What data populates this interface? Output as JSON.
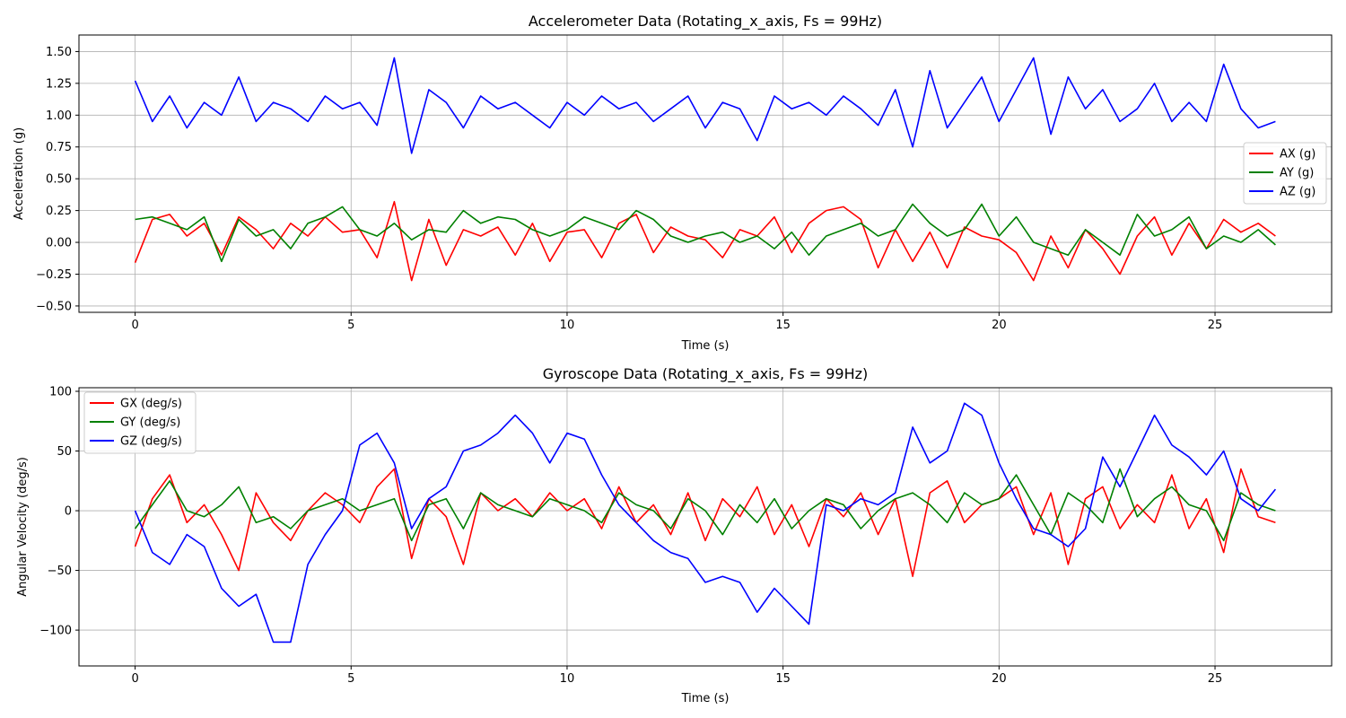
{
  "chart_data": [
    {
      "type": "line",
      "title": "Accelerometer Data (Rotating_x_axis, Fs = 99Hz)",
      "xlabel": "Time (s)",
      "ylabel": "Acceleration (g)",
      "xlim": [
        -1.3,
        27.7
      ],
      "ylim": [
        -0.55,
        1.63
      ],
      "xticks": [
        0,
        5,
        10,
        15,
        20,
        25
      ],
      "xtick_labels": [
        "0",
        "5",
        "10",
        "15",
        "20",
        "25"
      ],
      "yticks": [
        -0.5,
        -0.25,
        0,
        0.25,
        0.5,
        0.75,
        1,
        1.25,
        1.5
      ],
      "ytick_labels": [
        "−0.50",
        "−0.25",
        "0.00",
        "0.25",
        "0.50",
        "0.75",
        "1.00",
        "1.25",
        "1.50"
      ],
      "grid": true,
      "legend_position": "center-right",
      "x": [
        0,
        0.4,
        0.8,
        1.2,
        1.6,
        2,
        2.4,
        2.8,
        3.2,
        3.6,
        4,
        4.4,
        4.8,
        5.2,
        5.6,
        6,
        6.4,
        6.8,
        7.2,
        7.6,
        8,
        8.4,
        8.8,
        9.2,
        9.6,
        10,
        10.4,
        10.8,
        11.2,
        11.6,
        12,
        12.4,
        12.8,
        13.2,
        13.6,
        14,
        14.4,
        14.8,
        15.2,
        15.6,
        16,
        16.4,
        16.8,
        17.2,
        17.6,
        18,
        18.4,
        18.8,
        19.2,
        19.6,
        20,
        20.4,
        20.8,
        21.2,
        21.6,
        22,
        22.4,
        22.8,
        23.2,
        23.6,
        24,
        24.4,
        24.8,
        25.2,
        25.6,
        26,
        26.4
      ],
      "series": [
        {
          "name": "AX (g)",
          "color": "#ff0000",
          "values": [
            -0.16,
            0.18,
            0.22,
            0.05,
            0.15,
            -0.1,
            0.2,
            0.1,
            -0.05,
            0.15,
            0.05,
            0.2,
            0.08,
            0.1,
            -0.12,
            0.32,
            -0.3,
            0.18,
            -0.18,
            0.1,
            0.05,
            0.12,
            -0.1,
            0.15,
            -0.15,
            0.08,
            0.1,
            -0.12,
            0.15,
            0.22,
            -0.08,
            0.12,
            0.05,
            0.02,
            -0.12,
            0.1,
            0.05,
            0.2,
            -0.08,
            0.15,
            0.25,
            0.28,
            0.18,
            -0.2,
            0.1,
            -0.15,
            0.08,
            -0.2,
            0.12,
            0.05,
            0.02,
            -0.08,
            -0.3,
            0.05,
            -0.2,
            0.1,
            -0.05,
            -0.25,
            0.05,
            0.2,
            -0.1,
            0.15,
            -0.05,
            0.18,
            0.08,
            0.15,
            0.05
          ]
        },
        {
          "name": "AY (g)",
          "color": "#008000",
          "values": [
            0.18,
            0.2,
            0.15,
            0.1,
            0.2,
            -0.15,
            0.18,
            0.05,
            0.1,
            -0.05,
            0.15,
            0.2,
            0.28,
            0.1,
            0.05,
            0.15,
            0.02,
            0.1,
            0.08,
            0.25,
            0.15,
            0.2,
            0.18,
            0.1,
            0.05,
            0.1,
            0.2,
            0.15,
            0.1,
            0.25,
            0.18,
            0.05,
            0,
            0.05,
            0.08,
            0,
            0.05,
            -0.05,
            0.08,
            -0.1,
            0.05,
            0.1,
            0.15,
            0.05,
            0.1,
            0.3,
            0.15,
            0.05,
            0.1,
            0.3,
            0.05,
            0.2,
            0,
            -0.05,
            -0.1,
            0.1,
            0,
            -0.1,
            0.22,
            0.05,
            0.1,
            0.2,
            -0.05,
            0.05,
            0,
            0.1,
            -0.02
          ]
        },
        {
          "name": "AZ (g)",
          "color": "#0000ff",
          "values": [
            1.27,
            0.95,
            1.15,
            0.9,
            1.1,
            1,
            1.3,
            0.95,
            1.1,
            1.05,
            0.95,
            1.15,
            1.05,
            1.1,
            0.92,
            1.45,
            0.7,
            1.2,
            1.1,
            0.9,
            1.15,
            1.05,
            1.1,
            1,
            0.9,
            1.1,
            1,
            1.15,
            1.05,
            1.1,
            0.95,
            1.05,
            1.15,
            0.9,
            1.1,
            1.05,
            0.8,
            1.15,
            1.05,
            1.1,
            1,
            1.15,
            1.05,
            0.92,
            1.2,
            0.75,
            1.35,
            0.9,
            1.1,
            1.3,
            0.95,
            1.2,
            1.45,
            0.85,
            1.3,
            1.05,
            1.2,
            0.95,
            1.05,
            1.25,
            0.95,
            1.1,
            0.95,
            1.4,
            1.05,
            0.9,
            0.95
          ]
        }
      ]
    },
    {
      "type": "line",
      "title": "Gyroscope Data (Rotating_x_axis, Fs = 99Hz)",
      "xlabel": "Time (s)",
      "ylabel": "Angular Velocity (deg/s)",
      "xlim": [
        -1.3,
        27.7
      ],
      "ylim": [
        -130,
        103
      ],
      "xticks": [
        0,
        5,
        10,
        15,
        20,
        25
      ],
      "xtick_labels": [
        "0",
        "5",
        "10",
        "15",
        "20",
        "25"
      ],
      "yticks": [
        -100,
        -50,
        0,
        50,
        100
      ],
      "ytick_labels": [
        "−100",
        "−50",
        "0",
        "50",
        "100"
      ],
      "grid": true,
      "legend_position": "top-left",
      "x": [
        0,
        0.4,
        0.8,
        1.2,
        1.6,
        2,
        2.4,
        2.8,
        3.2,
        3.6,
        4,
        4.4,
        4.8,
        5.2,
        5.6,
        6,
        6.4,
        6.8,
        7.2,
        7.6,
        8,
        8.4,
        8.8,
        9.2,
        9.6,
        10,
        10.4,
        10.8,
        11.2,
        11.6,
        12,
        12.4,
        12.8,
        13.2,
        13.6,
        14,
        14.4,
        14.8,
        15.2,
        15.6,
        16,
        16.4,
        16.8,
        17.2,
        17.6,
        18,
        18.4,
        18.8,
        19.2,
        19.6,
        20,
        20.4,
        20.8,
        21.2,
        21.6,
        22,
        22.4,
        22.8,
        23.2,
        23.6,
        24,
        24.4,
        24.8,
        25.2,
        25.6,
        26,
        26.4
      ],
      "series": [
        {
          "name": "GX (deg/s)",
          "color": "#ff0000",
          "values": [
            -30,
            10,
            30,
            -10,
            5,
            -20,
            -50,
            15,
            -10,
            -25,
            0,
            15,
            5,
            -10,
            20,
            35,
            -40,
            10,
            -5,
            -45,
            15,
            0,
            10,
            -5,
            15,
            0,
            10,
            -15,
            20,
            -10,
            5,
            -20,
            15,
            -25,
            10,
            -5,
            20,
            -20,
            5,
            -30,
            10,
            -5,
            15,
            -20,
            10,
            -55,
            15,
            25,
            -10,
            5,
            10,
            20,
            -20,
            15,
            -45,
            10,
            20,
            -15,
            5,
            -10,
            30,
            -15,
            10,
            -35,
            35,
            -5,
            -10
          ]
        },
        {
          "name": "GY (deg/s)",
          "color": "#008000",
          "values": [
            -15,
            5,
            25,
            0,
            -5,
            5,
            20,
            -10,
            -5,
            -15,
            0,
            5,
            10,
            0,
            5,
            10,
            -25,
            5,
            10,
            -15,
            15,
            5,
            0,
            -5,
            10,
            5,
            0,
            -10,
            15,
            5,
            0,
            -15,
            10,
            0,
            -20,
            5,
            -10,
            10,
            -15,
            0,
            10,
            5,
            -15,
            0,
            10,
            15,
            5,
            -10,
            15,
            5,
            10,
            30,
            5,
            -20,
            15,
            5,
            -10,
            35,
            -5,
            10,
            20,
            5,
            0,
            -25,
            15,
            5,
            0
          ]
        },
        {
          "name": "GZ (deg/s)",
          "color": "#0000ff",
          "values": [
            0,
            -35,
            -45,
            -20,
            -30,
            -65,
            -80,
            -70,
            -110,
            -110,
            -45,
            -20,
            0,
            55,
            65,
            40,
            -15,
            10,
            20,
            50,
            55,
            65,
            80,
            65,
            40,
            65,
            60,
            30,
            5,
            -10,
            -25,
            -35,
            -40,
            -60,
            -55,
            -60,
            -85,
            -65,
            -80,
            -95,
            5,
            0,
            10,
            5,
            15,
            70,
            40,
            50,
            90,
            80,
            40,
            10,
            -15,
            -20,
            -30,
            -15,
            45,
            20,
            50,
            80,
            55,
            45,
            30,
            50,
            10,
            0,
            18
          ]
        }
      ]
    }
  ]
}
